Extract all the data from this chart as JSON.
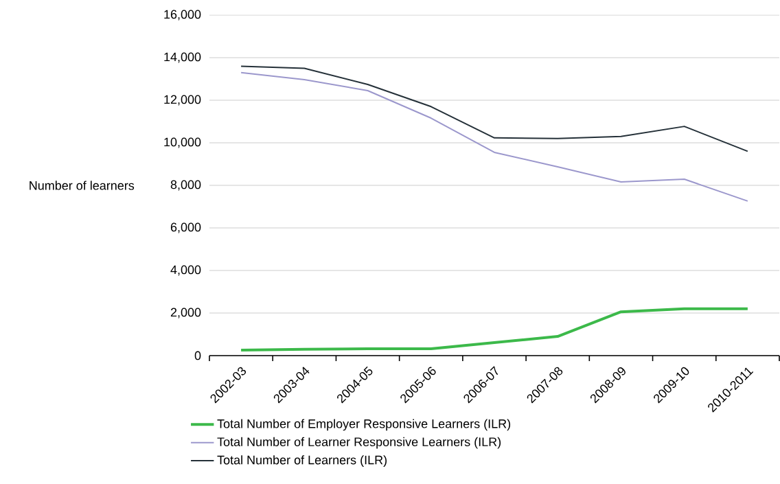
{
  "chart_data": {
    "type": "line",
    "ylabel": "Number of learners",
    "categories": [
      "2002-03",
      "2003-04",
      "2004-05",
      "2005-06",
      "2006-07",
      "2007-08",
      "2008-09",
      "2009-10",
      "2010-2011"
    ],
    "series": [
      {
        "name": "Total Number of Employer Responsive Learners (ILR)",
        "color": "#3cb94a",
        "values": [
          260,
          300,
          320,
          320,
          610,
          900,
          2060,
          2200,
          2200
        ]
      },
      {
        "name": "Total Number of Learner Responsive Learners (ILR)",
        "color": "#9b97cc",
        "values": [
          13300,
          12970,
          12450,
          11160,
          9550,
          8870,
          8160,
          8290,
          7260
        ]
      },
      {
        "name": "Total Number of Learners (ILR)",
        "color": "#243038",
        "values": [
          13600,
          13500,
          12740,
          11700,
          10230,
          10200,
          10300,
          10770,
          9600
        ]
      }
    ],
    "ylim": [
      0,
      16000
    ],
    "yticks": [
      {
        "value": 0,
        "label": "0"
      },
      {
        "value": 2000,
        "label": "2,000"
      },
      {
        "value": 4000,
        "label": "4,000"
      },
      {
        "value": 6000,
        "label": "6,000"
      },
      {
        "value": 8000,
        "label": "8,000"
      },
      {
        "value": 10000,
        "label": "10,000"
      },
      {
        "value": 12000,
        "label": "12,000"
      },
      {
        "value": 14000,
        "label": "14,000"
      },
      {
        "value": 16000,
        "label": "16,000"
      }
    ],
    "grid": "y",
    "legend": "bottom",
    "marker": "none",
    "line_style": "solid"
  }
}
